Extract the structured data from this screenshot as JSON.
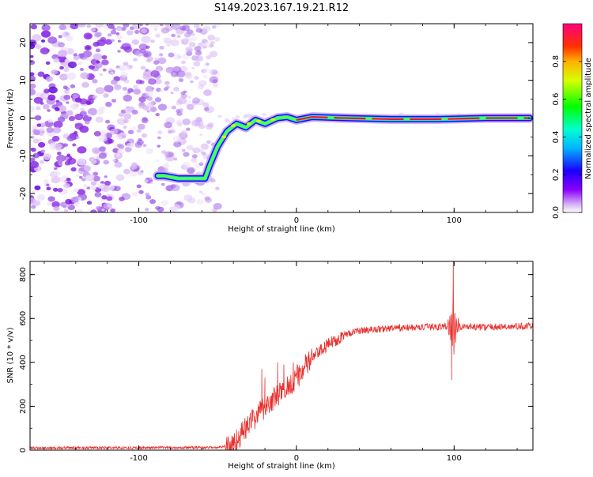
{
  "title": "S149.2023.167.19.21.R12",
  "colors": {
    "line": "#e8312e",
    "noise": "#8a2be2",
    "track_outer": "#2b00ff",
    "track_mid": "#00e6d6",
    "track_core": "#ff1030"
  },
  "chart_data": [
    {
      "type": "heatmap",
      "title": "S149.2023.167.19.21.R12",
      "xlabel": "Height of straight line (km)",
      "ylabel": "Frequency (Hz)",
      "xlim": [
        -169,
        150
      ],
      "ylim": [
        -25,
        25
      ],
      "xticks": [
        -100,
        0,
        100
      ],
      "yticks": [
        -20,
        -10,
        0,
        10,
        20
      ],
      "colorbar": {
        "label": "Normalized spectral amplitude",
        "range": [
          0,
          1
        ],
        "ticks": [
          "0.0",
          "0.2",
          "0.4",
          "0.6",
          "0.8"
        ],
        "tick_values": [
          0.0,
          0.2,
          0.4,
          0.6,
          0.8
        ]
      },
      "noise_region_x": [
        -169,
        -52
      ],
      "track": [
        {
          "x": -88,
          "y": -15.3
        },
        {
          "x": -84,
          "y": -15.3
        },
        {
          "x": -75,
          "y": -16.0
        },
        {
          "x": -66,
          "y": -16.0
        },
        {
          "x": -58,
          "y": -16.0
        },
        {
          "x": -55,
          "y": -12.5
        },
        {
          "x": -50,
          "y": -7.5
        },
        {
          "x": -44,
          "y": -3.5
        },
        {
          "x": -38,
          "y": -1.5
        },
        {
          "x": -32,
          "y": -2.5
        },
        {
          "x": -26,
          "y": -0.5
        },
        {
          "x": -20,
          "y": -1.5
        },
        {
          "x": -12,
          "y": 0.0
        },
        {
          "x": -6,
          "y": 0.3
        },
        {
          "x": 0,
          "y": -0.5
        },
        {
          "x": 10,
          "y": 0.3
        },
        {
          "x": 30,
          "y": 0.0
        },
        {
          "x": 60,
          "y": -0.3
        },
        {
          "x": 90,
          "y": -0.3
        },
        {
          "x": 120,
          "y": 0.0
        },
        {
          "x": 148,
          "y": 0.0
        }
      ]
    },
    {
      "type": "line",
      "xlabel": "Height of straight line (km)",
      "ylabel": "SNR (10 * v/v)",
      "xlim": [
        -169,
        150
      ],
      "ylim": [
        0,
        860
      ],
      "xticks": [
        -100,
        0,
        100
      ],
      "yticks": [
        0,
        200,
        400,
        600,
        800
      ],
      "trend": [
        {
          "x": -169,
          "y": 10
        },
        {
          "x": -50,
          "y": 12
        },
        {
          "x": -40,
          "y": 25
        },
        {
          "x": -30,
          "y": 120
        },
        {
          "x": -20,
          "y": 200
        },
        {
          "x": -10,
          "y": 260
        },
        {
          "x": 0,
          "y": 330
        },
        {
          "x": 10,
          "y": 420
        },
        {
          "x": 20,
          "y": 480
        },
        {
          "x": 30,
          "y": 525
        },
        {
          "x": 40,
          "y": 545
        },
        {
          "x": 60,
          "y": 555
        },
        {
          "x": 80,
          "y": 560
        },
        {
          "x": 100,
          "y": 565
        },
        {
          "x": 120,
          "y": 560
        },
        {
          "x": 150,
          "y": 565
        }
      ],
      "spikes": [
        {
          "x": -22,
          "y": 370
        },
        {
          "x": -20,
          "y": 330
        },
        {
          "x": -12,
          "y": 400
        },
        {
          "x": -8,
          "y": 390
        },
        {
          "x": -2,
          "y": 400
        },
        {
          "x": 99.5,
          "y": 860
        },
        {
          "x": 98.5,
          "y": 320
        }
      ]
    }
  ]
}
